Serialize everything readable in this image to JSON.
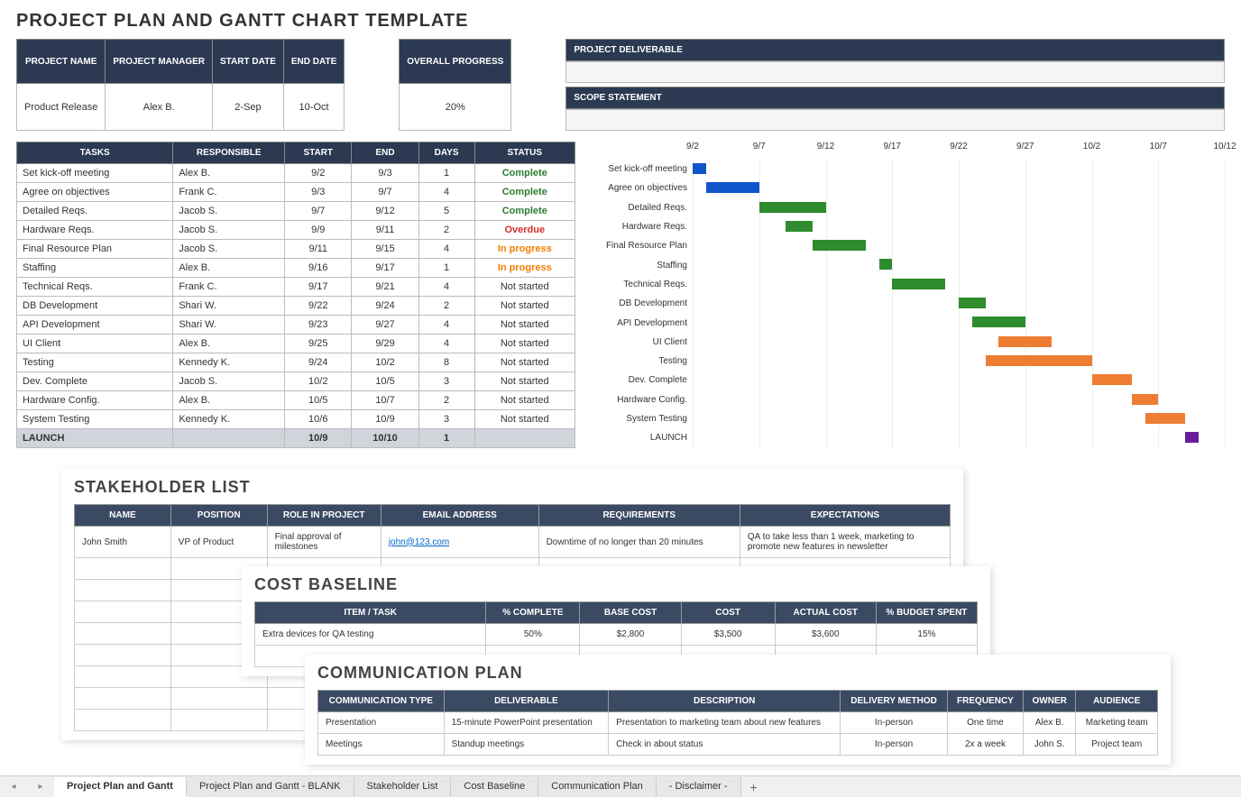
{
  "title": "PROJECT PLAN AND GANTT CHART TEMPLATE",
  "projectInfo": {
    "headers": [
      "PROJECT NAME",
      "PROJECT MANAGER",
      "START DATE",
      "END DATE"
    ],
    "values": [
      "Product Release",
      "Alex B.",
      "2-Sep",
      "10-Oct"
    ]
  },
  "overallProgress": {
    "header": "OVERALL PROGRESS",
    "value": "20%"
  },
  "deliverable": {
    "header": "PROJECT DELIVERABLE"
  },
  "scope": {
    "header": "SCOPE STATEMENT"
  },
  "tasksTable": {
    "headers": [
      "TASKS",
      "RESPONSIBLE",
      "START",
      "END",
      "DAYS",
      "STATUS"
    ],
    "rows": [
      {
        "task": "Set kick-off meeting",
        "resp": "Alex B.",
        "start": "9/2",
        "end": "9/3",
        "days": "1",
        "status": "Complete",
        "statusClass": "status-complete"
      },
      {
        "task": "Agree on objectives",
        "resp": "Frank C.",
        "start": "9/3",
        "end": "9/7",
        "days": "4",
        "status": "Complete",
        "statusClass": "status-complete"
      },
      {
        "task": "Detailed Reqs.",
        "resp": "Jacob S.",
        "start": "9/7",
        "end": "9/12",
        "days": "5",
        "status": "Complete",
        "statusClass": "status-complete"
      },
      {
        "task": "Hardware Reqs.",
        "resp": "Jacob S.",
        "start": "9/9",
        "end": "9/11",
        "days": "2",
        "status": "Overdue",
        "statusClass": "status-overdue"
      },
      {
        "task": "Final Resource Plan",
        "resp": "Jacob S.",
        "start": "9/11",
        "end": "9/15",
        "days": "4",
        "status": "In progress",
        "statusClass": "status-progress"
      },
      {
        "task": "Staffing",
        "resp": "Alex B.",
        "start": "9/16",
        "end": "9/17",
        "days": "1",
        "status": "In progress",
        "statusClass": "status-progress"
      },
      {
        "task": "Technical Reqs.",
        "resp": "Frank C.",
        "start": "9/17",
        "end": "9/21",
        "days": "4",
        "status": "Not started",
        "statusClass": "status-notstarted"
      },
      {
        "task": "DB Development",
        "resp": "Shari W.",
        "start": "9/22",
        "end": "9/24",
        "days": "2",
        "status": "Not started",
        "statusClass": "status-notstarted"
      },
      {
        "task": "API Development",
        "resp": "Shari W.",
        "start": "9/23",
        "end": "9/27",
        "days": "4",
        "status": "Not started",
        "statusClass": "status-notstarted"
      },
      {
        "task": "UI Client",
        "resp": "Alex B.",
        "start": "9/25",
        "end": "9/29",
        "days": "4",
        "status": "Not started",
        "statusClass": "status-notstarted"
      },
      {
        "task": "Testing",
        "resp": "Kennedy K.",
        "start": "9/24",
        "end": "10/2",
        "days": "8",
        "status": "Not started",
        "statusClass": "status-notstarted"
      },
      {
        "task": "Dev. Complete",
        "resp": "Jacob S.",
        "start": "10/2",
        "end": "10/5",
        "days": "3",
        "status": "Not started",
        "statusClass": "status-notstarted"
      },
      {
        "task": "Hardware Config.",
        "resp": "Alex B.",
        "start": "10/5",
        "end": "10/7",
        "days": "2",
        "status": "Not started",
        "statusClass": "status-notstarted"
      },
      {
        "task": "System Testing",
        "resp": "Kennedy K.",
        "start": "10/6",
        "end": "10/9",
        "days": "3",
        "status": "Not started",
        "statusClass": "status-notstarted"
      }
    ],
    "launchRow": {
      "task": "LAUNCH",
      "start": "10/9",
      "end": "10/10",
      "days": "1"
    }
  },
  "gantt": {
    "dateRange": {
      "start": 2,
      "end": 42
    },
    "axisLabels": [
      "9/2",
      "9/7",
      "9/12",
      "9/17",
      "9/22",
      "9/27",
      "10/2",
      "10/7",
      "10/12"
    ],
    "axisPositions": [
      2,
      7,
      12,
      17,
      22,
      27,
      32,
      37,
      42
    ],
    "colors": {
      "blue": "#1155cc",
      "green": "#2e8b2e",
      "orange": "#ed7d31",
      "purple": "#6a1b9a"
    },
    "bars": [
      {
        "label": "Set kick-off meeting",
        "start": 2,
        "end": 3,
        "color": "#1155cc"
      },
      {
        "label": "Agree on objectives",
        "start": 3,
        "end": 7,
        "color": "#1155cc"
      },
      {
        "label": "Detailed Reqs.",
        "start": 7,
        "end": 12,
        "color": "#2e8b2e"
      },
      {
        "label": "Hardware Reqs.",
        "start": 9,
        "end": 11,
        "color": "#2e8b2e"
      },
      {
        "label": "Final Resource Plan",
        "start": 11,
        "end": 15,
        "color": "#2e8b2e"
      },
      {
        "label": "Staffing",
        "start": 16,
        "end": 17,
        "color": "#2e8b2e"
      },
      {
        "label": "Technical Reqs.",
        "start": 17,
        "end": 21,
        "color": "#2e8b2e"
      },
      {
        "label": "DB Development",
        "start": 22,
        "end": 24,
        "color": "#2e8b2e"
      },
      {
        "label": "API Development",
        "start": 23,
        "end": 27,
        "color": "#2e8b2e"
      },
      {
        "label": "UI Client",
        "start": 25,
        "end": 29,
        "color": "#ed7d31"
      },
      {
        "label": "Testing",
        "start": 24,
        "end": 32,
        "color": "#ed7d31"
      },
      {
        "label": "Dev. Complete",
        "start": 32,
        "end": 35,
        "color": "#ed7d31"
      },
      {
        "label": "Hardware Config.",
        "start": 35,
        "end": 37,
        "color": "#ed7d31"
      },
      {
        "label": "System Testing",
        "start": 36,
        "end": 39,
        "color": "#ed7d31"
      },
      {
        "label": "LAUNCH",
        "start": 39,
        "end": 40,
        "color": "#6a1b9a"
      }
    ]
  },
  "stakeholder": {
    "title": "STAKEHOLDER LIST",
    "headers": [
      "NAME",
      "POSITION",
      "ROLE IN PROJECT",
      "EMAIL ADDRESS",
      "REQUIREMENTS",
      "EXPECTATIONS"
    ],
    "row": {
      "name": "John Smith",
      "position": "VP of Product",
      "role": "Final approval of milestones",
      "email": "john@123.com",
      "req": "Downtime of no longer than 20 minutes",
      "exp": "QA to take less than 1 week, marketing to promote new features in newsletter"
    }
  },
  "costBaseline": {
    "title": "COST BASELINE",
    "headers": [
      "ITEM / TASK",
      "% COMPLETE",
      "BASE COST",
      "COST",
      "ACTUAL COST",
      "% BUDGET SPENT"
    ],
    "row": {
      "item": "Extra devices for QA testing",
      "pct": "50%",
      "base": "$2,800",
      "cost": "$3,500",
      "actual": "$3,600",
      "budget": "15%"
    }
  },
  "commPlan": {
    "title": "COMMUNICATION PLAN",
    "headers": [
      "COMMUNICATION TYPE",
      "DELIVERABLE",
      "DESCRIPTION",
      "DELIVERY METHOD",
      "FREQUENCY",
      "OWNER",
      "AUDIENCE"
    ],
    "rows": [
      {
        "type": "Presentation",
        "deliv": "15-minute PowerPoint presentation",
        "desc": "Presentation to marketing team about new features",
        "method": "In-person",
        "freq": "One time",
        "owner": "Alex B.",
        "aud": "Marketing team"
      },
      {
        "type": "Meetings",
        "deliv": "Standup meetings",
        "desc": "Check in about status",
        "method": "In-person",
        "freq": "2x a week",
        "owner": "John S.",
        "aud": "Project team"
      }
    ]
  },
  "tabs": [
    "Project Plan and Gantt",
    "Project Plan and Gantt - BLANK",
    "Stakeholder List",
    "Cost Baseline",
    "Communication Plan",
    "- Disclaimer -"
  ],
  "activeTab": 0
}
